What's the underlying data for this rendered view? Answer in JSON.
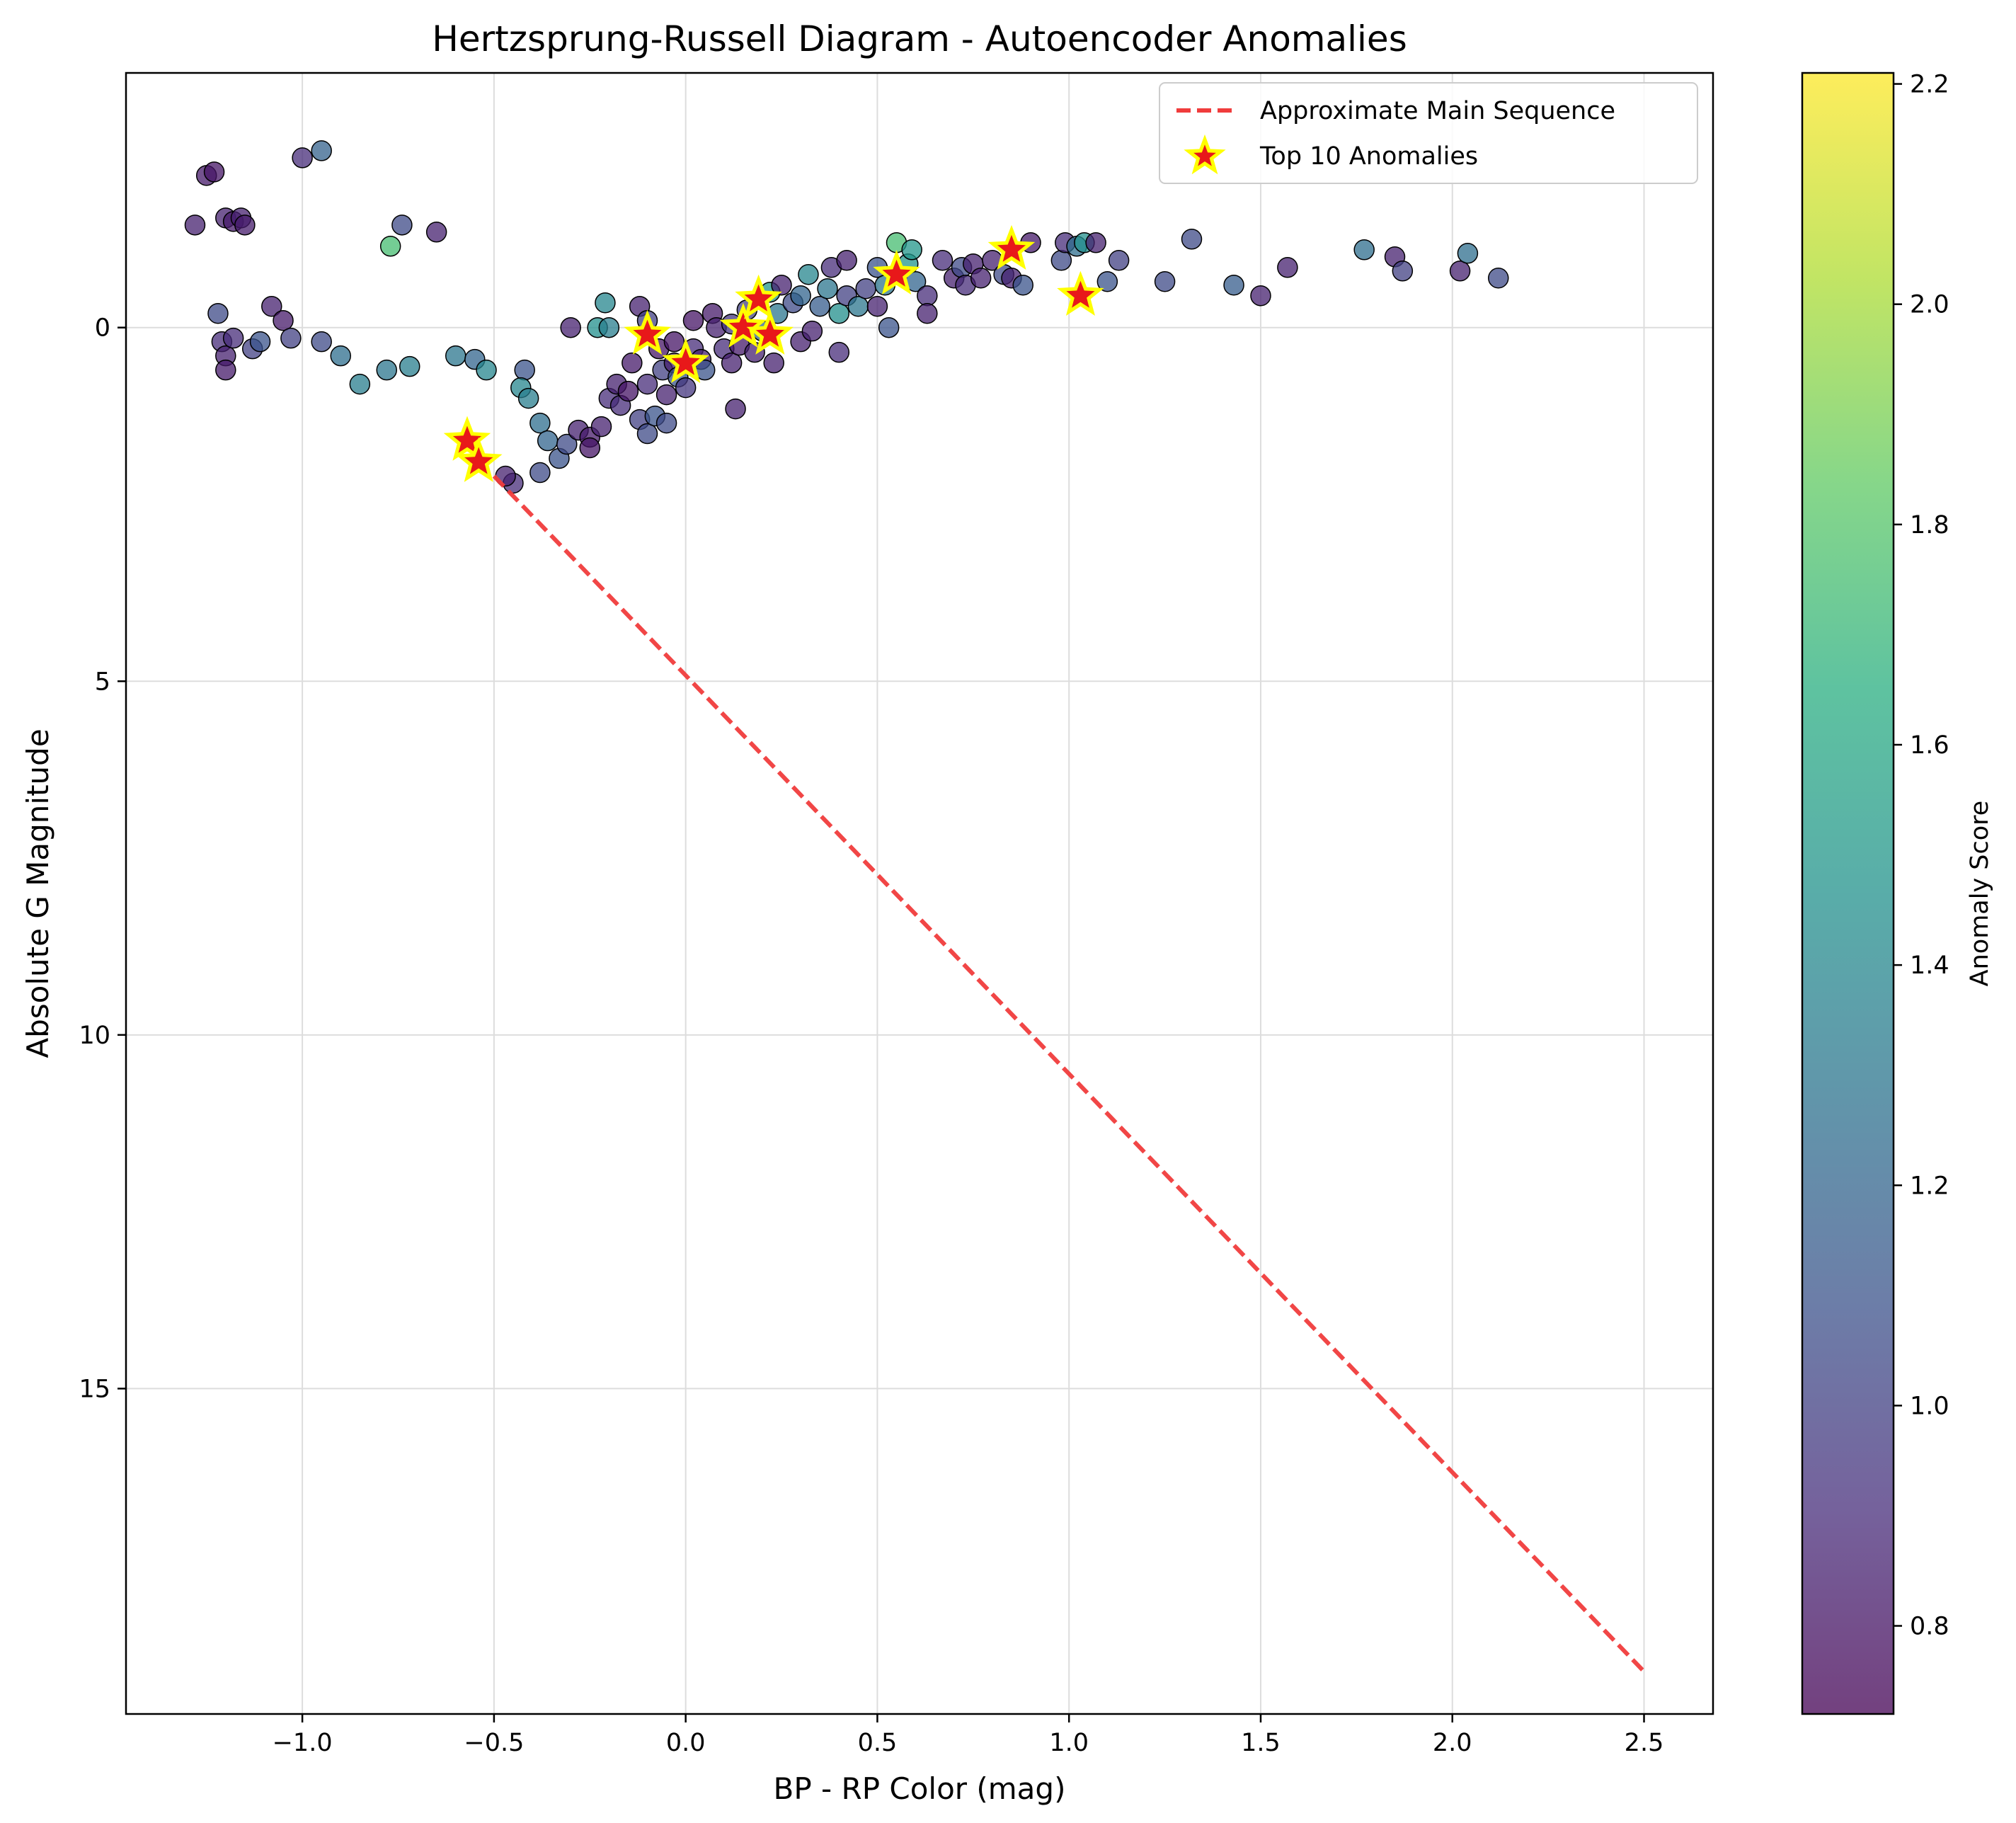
{
  "chart_data": {
    "type": "scatter",
    "title": "Hertzsprung-Russell Diagram - Autoencoder Anomalies",
    "xlabel": "BP - RP Color (mag)",
    "ylabel": "Absolute G Magnitude",
    "xlim": [
      -1.46,
      2.68
    ],
    "ylim": [
      19.6,
      -3.6
    ],
    "y_inverted": true,
    "grid": true,
    "legend_position": "top-right",
    "x_ticks": [
      -1.0,
      -0.5,
      0.0,
      0.5,
      1.0,
      1.5,
      2.0,
      2.5
    ],
    "x_tick_labels": [
      "−1.0",
      "−0.5",
      "0.0",
      "0.5",
      "1.0",
      "1.5",
      "2.0",
      "2.5"
    ],
    "y_ticks": [
      0,
      5,
      10,
      15
    ],
    "y_tick_labels": [
      "0",
      "5",
      "10",
      "15"
    ],
    "colorbar": {
      "label": "Anomaly Score",
      "range": [
        0.72,
        2.21
      ],
      "ticks": [
        0.8,
        1.0,
        1.2,
        1.4,
        1.6,
        1.8,
        2.0,
        2.2
      ],
      "tick_labels": [
        "0.8",
        "1.0",
        "1.2",
        "1.4",
        "1.6",
        "1.8",
        "2.0",
        "2.2"
      ],
      "colormap": "viridis"
    },
    "series": [
      {
        "name": "Approximate Main Sequence",
        "style": "dashed-line",
        "color": "#f03c3c",
        "x": [
          -0.5,
          2.5
        ],
        "y": [
          2.1,
          19.0
        ]
      },
      {
        "name": "Top 10 Anomalies",
        "style": "star-marker",
        "fill_color": "#e8181a",
        "edge_color": "#ffff00",
        "x": [
          -0.57,
          -0.54,
          -0.1,
          0.0,
          0.15,
          0.19,
          0.22,
          0.55,
          0.85,
          1.03
        ],
        "y": [
          1.6,
          1.9,
          0.1,
          0.5,
          0.0,
          -0.4,
          0.1,
          -0.75,
          -1.1,
          -0.45
        ]
      }
    ],
    "points": [
      {
        "x": -1.28,
        "y": -1.45,
        "s": 0.85
      },
      {
        "x": -1.25,
        "y": -2.15,
        "s": 0.82
      },
      {
        "x": -1.23,
        "y": -2.2,
        "s": 0.8
      },
      {
        "x": -1.2,
        "y": -1.55,
        "s": 0.85
      },
      {
        "x": -1.18,
        "y": -1.5,
        "s": 0.82
      },
      {
        "x": -1.16,
        "y": -1.55,
        "s": 0.85
      },
      {
        "x": -1.15,
        "y": -1.45,
        "s": 0.83
      },
      {
        "x": -1.0,
        "y": -2.4,
        "s": 0.9
      },
      {
        "x": -0.95,
        "y": -2.5,
        "s": 1.18
      },
      {
        "x": -0.77,
        "y": -1.15,
        "s": 1.75
      },
      {
        "x": -0.74,
        "y": -1.45,
        "s": 1.05
      },
      {
        "x": -0.65,
        "y": -1.35,
        "s": 0.85
      },
      {
        "x": -1.22,
        "y": -0.2,
        "s": 1.05
      },
      {
        "x": -1.21,
        "y": 0.2,
        "s": 0.9
      },
      {
        "x": -1.2,
        "y": 0.4,
        "s": 0.85
      },
      {
        "x": -1.2,
        "y": 0.6,
        "s": 0.82
      },
      {
        "x": -1.18,
        "y": 0.15,
        "s": 0.9
      },
      {
        "x": -1.13,
        "y": 0.3,
        "s": 1.0
      },
      {
        "x": -1.11,
        "y": 0.2,
        "s": 1.1
      },
      {
        "x": -1.08,
        "y": -0.3,
        "s": 0.85
      },
      {
        "x": -1.05,
        "y": -0.1,
        "s": 0.82
      },
      {
        "x": -1.03,
        "y": 0.15,
        "s": 1.0
      },
      {
        "x": -0.95,
        "y": 0.2,
        "s": 1.05
      },
      {
        "x": -0.9,
        "y": 0.4,
        "s": 1.25
      },
      {
        "x": -0.85,
        "y": 0.8,
        "s": 1.35
      },
      {
        "x": -0.78,
        "y": 0.6,
        "s": 1.3
      },
      {
        "x": -0.72,
        "y": 0.55,
        "s": 1.35
      },
      {
        "x": -0.6,
        "y": 0.4,
        "s": 1.3
      },
      {
        "x": -0.55,
        "y": 0.45,
        "s": 1.2
      },
      {
        "x": -0.52,
        "y": 0.6,
        "s": 1.4
      },
      {
        "x": -0.42,
        "y": 0.6,
        "s": 1.1
      },
      {
        "x": -0.43,
        "y": 0.85,
        "s": 1.4
      },
      {
        "x": -0.41,
        "y": 1.0,
        "s": 1.35
      },
      {
        "x": -0.38,
        "y": 1.35,
        "s": 1.25
      },
      {
        "x": -0.36,
        "y": 1.6,
        "s": 1.2
      },
      {
        "x": -0.33,
        "y": 1.85,
        "s": 1.1
      },
      {
        "x": -0.31,
        "y": 1.65,
        "s": 1.05
      },
      {
        "x": -0.38,
        "y": 2.05,
        "s": 1.05
      },
      {
        "x": -0.45,
        "y": 2.2,
        "s": 0.9
      },
      {
        "x": -0.47,
        "y": 2.1,
        "s": 0.85
      },
      {
        "x": -0.3,
        "y": 0.0,
        "s": 0.85
      },
      {
        "x": -0.28,
        "y": 1.45,
        "s": 0.85
      },
      {
        "x": -0.25,
        "y": 1.55,
        "s": 0.82
      },
      {
        "x": -0.25,
        "y": 1.7,
        "s": 0.8
      },
      {
        "x": -0.22,
        "y": 1.4,
        "s": 0.85
      },
      {
        "x": -0.23,
        "y": 0.0,
        "s": 1.45
      },
      {
        "x": -0.21,
        "y": -0.35,
        "s": 1.4
      },
      {
        "x": -0.2,
        "y": 0.0,
        "s": 1.35
      },
      {
        "x": -0.2,
        "y": 1.0,
        "s": 0.9
      },
      {
        "x": -0.18,
        "y": 0.8,
        "s": 0.85
      },
      {
        "x": -0.17,
        "y": 1.1,
        "s": 0.9
      },
      {
        "x": -0.15,
        "y": 0.9,
        "s": 0.8
      },
      {
        "x": -0.14,
        "y": 0.5,
        "s": 0.82
      },
      {
        "x": -0.12,
        "y": 1.3,
        "s": 1.0
      },
      {
        "x": -0.12,
        "y": -0.3,
        "s": 0.85
      },
      {
        "x": -0.1,
        "y": 1.5,
        "s": 1.05
      },
      {
        "x": -0.1,
        "y": 0.8,
        "s": 0.9
      },
      {
        "x": -0.08,
        "y": 1.25,
        "s": 1.1
      },
      {
        "x": -0.1,
        "y": -0.1,
        "s": 1.0
      },
      {
        "x": -0.07,
        "y": 0.3,
        "s": 0.8
      },
      {
        "x": -0.06,
        "y": 0.6,
        "s": 1.0
      },
      {
        "x": -0.05,
        "y": 0.95,
        "s": 0.85
      },
      {
        "x": -0.05,
        "y": 1.35,
        "s": 1.05
      },
      {
        "x": -0.03,
        "y": 0.5,
        "s": 0.85
      },
      {
        "x": -0.03,
        "y": 0.2,
        "s": 0.8
      },
      {
        "x": -0.02,
        "y": 0.7,
        "s": 1.1
      },
      {
        "x": 0.0,
        "y": 0.85,
        "s": 0.95
      },
      {
        "x": 0.02,
        "y": 0.3,
        "s": 0.9
      },
      {
        "x": 0.02,
        "y": -0.1,
        "s": 0.8
      },
      {
        "x": 0.04,
        "y": 0.45,
        "s": 0.85
      },
      {
        "x": 0.05,
        "y": 0.6,
        "s": 1.1
      },
      {
        "x": 0.07,
        "y": -0.2,
        "s": 0.82
      },
      {
        "x": 0.08,
        "y": 0.0,
        "s": 0.85
      },
      {
        "x": 0.1,
        "y": 0.3,
        "s": 0.9
      },
      {
        "x": 0.12,
        "y": 0.5,
        "s": 0.85
      },
      {
        "x": 0.12,
        "y": -0.05,
        "s": 0.95
      },
      {
        "x": 0.13,
        "y": 1.15,
        "s": 0.85
      },
      {
        "x": 0.14,
        "y": 0.25,
        "s": 0.82
      },
      {
        "x": 0.16,
        "y": -0.25,
        "s": 1.0
      },
      {
        "x": 0.18,
        "y": 0.35,
        "s": 0.85
      },
      {
        "x": 0.2,
        "y": 0.05,
        "s": 1.2
      },
      {
        "x": 0.22,
        "y": -0.5,
        "s": 1.5
      },
      {
        "x": 0.23,
        "y": 0.5,
        "s": 0.85
      },
      {
        "x": 0.24,
        "y": -0.2,
        "s": 1.3
      },
      {
        "x": 0.25,
        "y": -0.6,
        "s": 0.85
      },
      {
        "x": 0.28,
        "y": -0.35,
        "s": 1.05
      },
      {
        "x": 0.3,
        "y": 0.2,
        "s": 0.85
      },
      {
        "x": 0.3,
        "y": -0.45,
        "s": 1.2
      },
      {
        "x": 0.32,
        "y": -0.75,
        "s": 1.4
      },
      {
        "x": 0.33,
        "y": 0.05,
        "s": 0.85
      },
      {
        "x": 0.35,
        "y": -0.3,
        "s": 1.15
      },
      {
        "x": 0.37,
        "y": -0.55,
        "s": 1.3
      },
      {
        "x": 0.38,
        "y": -0.85,
        "s": 0.9
      },
      {
        "x": 0.4,
        "y": 0.35,
        "s": 0.9
      },
      {
        "x": 0.4,
        "y": -0.2,
        "s": 1.45
      },
      {
        "x": 0.42,
        "y": -0.45,
        "s": 1.0
      },
      {
        "x": 0.42,
        "y": -0.95,
        "s": 0.85
      },
      {
        "x": 0.45,
        "y": -0.3,
        "s": 1.3
      },
      {
        "x": 0.47,
        "y": -0.55,
        "s": 1.0
      },
      {
        "x": 0.5,
        "y": -0.85,
        "s": 1.1
      },
      {
        "x": 0.5,
        "y": -0.3,
        "s": 0.85
      },
      {
        "x": 0.52,
        "y": -0.6,
        "s": 1.3
      },
      {
        "x": 0.53,
        "y": 0.0,
        "s": 1.1
      },
      {
        "x": 0.55,
        "y": -1.2,
        "s": 1.75
      },
      {
        "x": 0.58,
        "y": -0.9,
        "s": 1.5
      },
      {
        "x": 0.59,
        "y": -1.1,
        "s": 1.5
      },
      {
        "x": 0.6,
        "y": -0.65,
        "s": 1.2
      },
      {
        "x": 0.63,
        "y": -0.45,
        "s": 0.9
      },
      {
        "x": 0.63,
        "y": -0.2,
        "s": 0.85
      },
      {
        "x": 0.67,
        "y": -0.95,
        "s": 0.9
      },
      {
        "x": 0.7,
        "y": -0.7,
        "s": 0.85
      },
      {
        "x": 0.72,
        "y": -0.85,
        "s": 1.05
      },
      {
        "x": 0.73,
        "y": -0.6,
        "s": 0.9
      },
      {
        "x": 0.75,
        "y": -0.9,
        "s": 0.85
      },
      {
        "x": 0.77,
        "y": -0.7,
        "s": 0.85
      },
      {
        "x": 0.8,
        "y": -0.95,
        "s": 0.85
      },
      {
        "x": 0.83,
        "y": -0.75,
        "s": 1.05
      },
      {
        "x": 0.85,
        "y": -0.7,
        "s": 0.85
      },
      {
        "x": 0.88,
        "y": -0.6,
        "s": 1.1
      },
      {
        "x": 0.9,
        "y": -1.2,
        "s": 0.82
      },
      {
        "x": 0.98,
        "y": -0.95,
        "s": 1.05
      },
      {
        "x": 0.99,
        "y": -1.2,
        "s": 0.9
      },
      {
        "x": 1.02,
        "y": -1.15,
        "s": 1.25
      },
      {
        "x": 1.04,
        "y": -1.2,
        "s": 1.45
      },
      {
        "x": 1.07,
        "y": -1.2,
        "s": 0.85
      },
      {
        "x": 1.1,
        "y": -0.65,
        "s": 1.1
      },
      {
        "x": 1.13,
        "y": -0.95,
        "s": 1.0
      },
      {
        "x": 1.25,
        "y": -0.65,
        "s": 1.05
      },
      {
        "x": 1.32,
        "y": -1.25,
        "s": 1.05
      },
      {
        "x": 1.43,
        "y": -0.6,
        "s": 1.15
      },
      {
        "x": 1.5,
        "y": -0.45,
        "s": 0.85
      },
      {
        "x": 1.57,
        "y": -0.85,
        "s": 0.85
      },
      {
        "x": 1.77,
        "y": -1.1,
        "s": 1.25
      },
      {
        "x": 1.85,
        "y": -1.0,
        "s": 0.85
      },
      {
        "x": 1.87,
        "y": -0.8,
        "s": 1.0
      },
      {
        "x": 2.02,
        "y": -0.8,
        "s": 0.85
      },
      {
        "x": 2.04,
        "y": -1.05,
        "s": 1.25
      },
      {
        "x": 2.12,
        "y": -0.7,
        "s": 1.05
      }
    ]
  }
}
